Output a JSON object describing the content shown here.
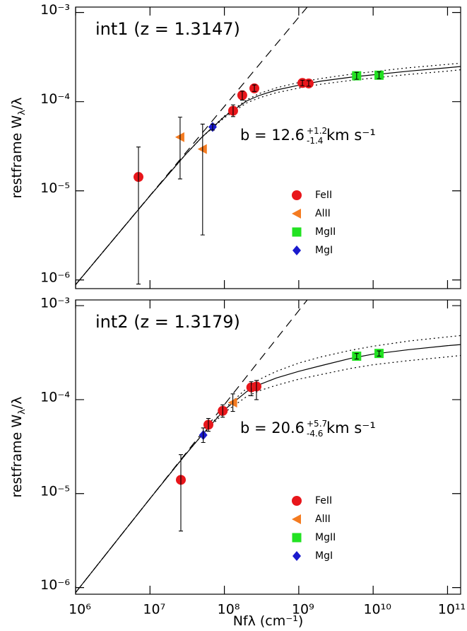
{
  "chart_data": [
    {
      "type": "scatter",
      "title": "int1 (z = 1.3147)",
      "title_color": "#2ee82e",
      "annotation": {
        "text": "b = 12.6",
        "sup": "+1.2",
        "sub": "-1.4",
        "unit": "km s⁻¹"
      },
      "ylabel": {
        "text": "restframe W",
        "sub": "λ",
        "rest": "/λ"
      },
      "xscale": "log",
      "yscale": "log",
      "xlim": [
        1000000,
        150000000000
      ],
      "ylim": [
        8e-07,
        0.00115
      ],
      "xticks": [
        {
          "value": 1000000,
          "label": "10⁶"
        },
        {
          "value": 10000000,
          "label": "10⁷"
        },
        {
          "value": 100000000,
          "label": "10⁸"
        },
        {
          "value": 1000000000,
          "label": "10⁹"
        },
        {
          "value": 10000000000,
          "label": "10¹⁰"
        },
        {
          "value": 100000000000,
          "label": "10¹¹"
        }
      ],
      "show_xticklabels": false,
      "yticks": [
        {
          "value": 1e-06,
          "label": "10⁻⁶"
        },
        {
          "value": 1e-05,
          "label": "10⁻⁵"
        },
        {
          "value": 0.0001,
          "label": "10⁻⁴"
        },
        {
          "value": 0.001,
          "label": "10⁻³"
        }
      ],
      "legend": "lower right",
      "series": [
        {
          "name": "FeII",
          "color": "#e8161b",
          "marker": "circle",
          "x": [
            7000000,
            131000000,
            174000000,
            253000000,
            1120000000,
            1360000000
          ],
          "y": [
            1.43e-05,
            7.9e-05,
            0.000118,
            0.000141,
            0.000162,
            0.00016
          ],
          "ylo": [
            9e-07,
            6.8e-05,
            0.000104,
            0.00013,
            0.000151,
            0.000149
          ],
          "yhi": [
            3.1e-05,
            9.2e-05,
            0.000131,
            0.000154,
            0.000174,
            0.000172
          ]
        },
        {
          "name": "AlII",
          "color": "#f47b20",
          "marker": "triangle-left",
          "x": [
            25400000,
            51000000
          ],
          "y": [
            4e-05,
            2.94e-05
          ],
          "ylo": [
            1.36e-05,
            3.2e-06
          ],
          "yhi": [
            6.7e-05,
            5.6e-05
          ]
        },
        {
          "name": "MgII",
          "color": "#22e222",
          "marker": "square",
          "x": [
            6000000000,
            12000000000
          ],
          "y": [
            0.000195,
            0.000198
          ],
          "ylo": [
            0.000178,
            0.000181
          ],
          "yhi": [
            0.000213,
            0.000216
          ]
        },
        {
          "name": "MgI",
          "color": "#1a1acd",
          "marker": "diamond",
          "x": [
            69500000
          ],
          "y": [
            5.2e-05
          ],
          "ylo": [
            4.8e-05
          ],
          "yhi": [
            5.6e-05
          ]
        }
      ],
      "lines": [
        {
          "style": "dashed",
          "x": [
            1000000,
            1300000000
          ],
          "y": [
            8.85e-07,
            0.00115
          ]
        },
        {
          "style": "solid",
          "x": [
            1000000,
            10000000,
            30000000,
            50000000,
            100000000,
            200000000,
            300000000,
            500000000,
            1000000000,
            2000000000,
            5000000000,
            10000000000,
            30000000000,
            100000000000,
            150000000000
          ],
          "y": [
            8.85e-07,
            8.8e-06,
            2.55e-05,
            4e-05,
            6.8e-05,
            0.000102,
            0.000118,
            0.000135,
            0.000153,
            0.00017,
            0.000188,
            0.0002,
            0.00022,
            0.00024,
            0.000248
          ]
        },
        {
          "style": "dotted",
          "x": [
            1000000,
            10000000,
            30000000,
            50000000,
            100000000,
            200000000,
            300000000,
            500000000,
            1000000000,
            2000000000,
            5000000000,
            10000000000,
            30000000000,
            100000000000,
            150000000000
          ],
          "y": [
            8.85e-07,
            8.8e-06,
            2.55e-05,
            4e-05,
            6.9e-05,
            0.000105,
            0.000124,
            0.000143,
            0.000164,
            0.000182,
            0.000203,
            0.000217,
            0.00024,
            0.000262,
            0.00027
          ]
        },
        {
          "style": "dotted",
          "x": [
            1000000,
            10000000,
            30000000,
            50000000,
            100000000,
            200000000,
            300000000,
            500000000,
            1000000000,
            2000000000,
            5000000000,
            10000000000,
            30000000000,
            100000000000,
            150000000000
          ],
          "y": [
            8.85e-07,
            8.8e-06,
            2.55e-05,
            4e-05,
            6.6e-05,
            9.7e-05,
            0.000111,
            0.000126,
            0.000142,
            0.000157,
            0.000173,
            0.000184,
            0.000202,
            0.00022,
            0.000228
          ]
        }
      ]
    },
    {
      "type": "scatter",
      "title": "int2 (z = 1.3179)",
      "title_color": "#3a3adf",
      "annotation": {
        "text": "b = 20.6",
        "sup": "+5.7",
        "sub": "-4.6",
        "unit": "km s⁻¹"
      },
      "ylabel": {
        "text": "restframe W",
        "sub": "λ",
        "rest": "/λ"
      },
      "xlabel": "Nfλ (cm⁻¹)",
      "xscale": "log",
      "yscale": "log",
      "xlim": [
        1000000,
        150000000000
      ],
      "ylim": [
        8.5e-07,
        0.00115
      ],
      "xticks": [
        {
          "value": 1000000,
          "label": "10⁶"
        },
        {
          "value": 10000000,
          "label": "10⁷"
        },
        {
          "value": 100000000,
          "label": "10⁸"
        },
        {
          "value": 1000000000,
          "label": "10⁹"
        },
        {
          "value": 10000000000,
          "label": "10¹⁰"
        },
        {
          "value": 100000000000,
          "label": "10¹¹"
        }
      ],
      "show_xticklabels": true,
      "yticks": [
        {
          "value": 1e-06,
          "label": "10⁻⁶"
        },
        {
          "value": 1e-05,
          "label": "10⁻⁵"
        },
        {
          "value": 0.0001,
          "label": "10⁻⁴"
        },
        {
          "value": 0.001,
          "label": "10⁻³"
        }
      ],
      "legend": "lower right",
      "series": [
        {
          "name": "FeII",
          "color": "#e8161b",
          "marker": "circle",
          "x": [
            26000000,
            61000000,
            95000000,
            230000000,
            270000000
          ],
          "y": [
            1.4e-05,
            5.4e-05,
            7.6e-05,
            0.000135,
            0.000138
          ],
          "ylo": [
            4e-06,
            4.6e-05,
            6.5e-05,
            0.00011,
            0.0001
          ],
          "yhi": [
            2.6e-05,
            6.3e-05,
            8.8e-05,
            0.000155,
            0.00016
          ]
        },
        {
          "name": "AlII",
          "color": "#f47b20",
          "marker": "triangle-left",
          "x": [
            130000000
          ],
          "y": [
            9.3e-05
          ],
          "ylo": [
            7.5e-05
          ],
          "yhi": [
            0.000115
          ]
        },
        {
          "name": "MgII",
          "color": "#22e222",
          "marker": "square",
          "x": [
            6000000000,
            12000000000
          ],
          "y": [
            0.00029,
            0.00031
          ],
          "ylo": [
            0.00027,
            0.00029
          ],
          "yhi": [
            0.00031,
            0.00033
          ]
        },
        {
          "name": "MgI",
          "color": "#1a1acd",
          "marker": "diamond",
          "x": [
            52000000
          ],
          "y": [
            4.2e-05
          ],
          "ylo": [
            3.5e-05
          ],
          "yhi": [
            5e-05
          ]
        }
      ],
      "lines": [
        {
          "style": "dashed",
          "x": [
            1000000,
            1300000000
          ],
          "y": [
            8.85e-07,
            0.00115
          ]
        },
        {
          "style": "solid",
          "x": [
            1000000,
            10000000,
            30000000,
            50000000,
            100000000,
            200000000,
            300000000,
            500000000,
            1000000000,
            2000000000,
            5000000000,
            10000000000,
            30000000000,
            100000000000,
            150000000000
          ],
          "y": [
            8.85e-07,
            8.85e-06,
            2.6e-05,
            4.2e-05,
            7.8e-05,
            0.000122,
            0.000145,
            0.00017,
            0.0002,
            0.00023,
            0.000275,
            0.000305,
            0.00034,
            0.000375,
            0.000385
          ]
        },
        {
          "style": "dotted",
          "x": [
            1000000,
            10000000,
            30000000,
            50000000,
            100000000,
            200000000,
            300000000,
            500000000,
            1000000000,
            2000000000,
            5000000000,
            10000000000,
            30000000000,
            100000000000,
            150000000000
          ],
          "y": [
            8.85e-07,
            8.85e-06,
            2.6e-05,
            4.2e-05,
            8e-05,
            0.000132,
            0.000165,
            0.0002,
            0.000245,
            0.000285,
            0.000335,
            0.00037,
            0.00042,
            0.000465,
            0.00048
          ]
        },
        {
          "style": "dotted",
          "x": [
            1000000,
            10000000,
            30000000,
            50000000,
            100000000,
            200000000,
            300000000,
            500000000,
            1000000000,
            2000000000,
            5000000000,
            10000000000,
            30000000000,
            100000000000,
            150000000000
          ],
          "y": [
            8.85e-07,
            8.85e-06,
            2.6e-05,
            4.2e-05,
            7.3e-05,
            0.000108,
            0.000125,
            0.000142,
            0.000165,
            0.000185,
            0.000215,
            0.000235,
            0.00026,
            0.000285,
            0.000295
          ]
        }
      ]
    }
  ]
}
